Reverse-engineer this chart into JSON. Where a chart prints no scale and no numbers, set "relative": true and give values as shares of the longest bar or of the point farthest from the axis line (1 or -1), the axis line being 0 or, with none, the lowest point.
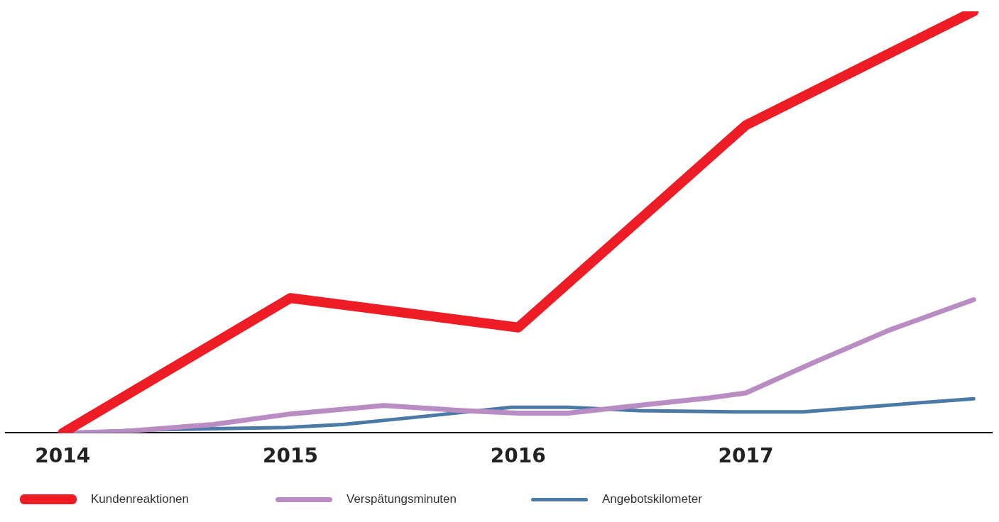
{
  "chart_data": {
    "type": "line",
    "relative": true,
    "xlim": [
      2013.75,
      2018.08
    ],
    "xticks": [
      2014,
      2015,
      2016,
      2017
    ],
    "grid": false,
    "legend": "bottom",
    "marker": "none",
    "line_style": "solid",
    "series": [
      {
        "name": "Kundenreaktionen",
        "color": "#ee1c25",
        "x": [
          2014,
          2015,
          2016,
          2017,
          2018
        ],
        "values": [
          0,
          0.32,
          0.25,
          0.73,
          1
        ]
      },
      {
        "name": "Verspätungsminuten",
        "color": "#b98cc4",
        "x": [
          2014,
          2014.25,
          2014.66,
          2015,
          2015.41,
          2015.76,
          2016,
          2016.22,
          2016.54,
          2016.84,
          2017,
          2017.31,
          2017.63,
          2018
        ],
        "values": [
          0,
          0.003,
          0.02,
          0.045,
          0.065,
          0.053,
          0.047,
          0.047,
          0.066,
          0.083,
          0.095,
          0.17,
          0.244,
          0.316
        ]
      },
      {
        "name": "Angebotskilometer",
        "color": "#4a7aa5",
        "x": [
          2014,
          2014.35,
          2014.98,
          2015.23,
          2015.6,
          2015.97,
          2016.22,
          2016.53,
          2016.94,
          2017.25,
          2017.63,
          2018
        ],
        "values": [
          0,
          0.007,
          0.013,
          0.02,
          0.04,
          0.061,
          0.061,
          0.053,
          0.05,
          0.05,
          0.066,
          0.081
        ]
      }
    ]
  }
}
